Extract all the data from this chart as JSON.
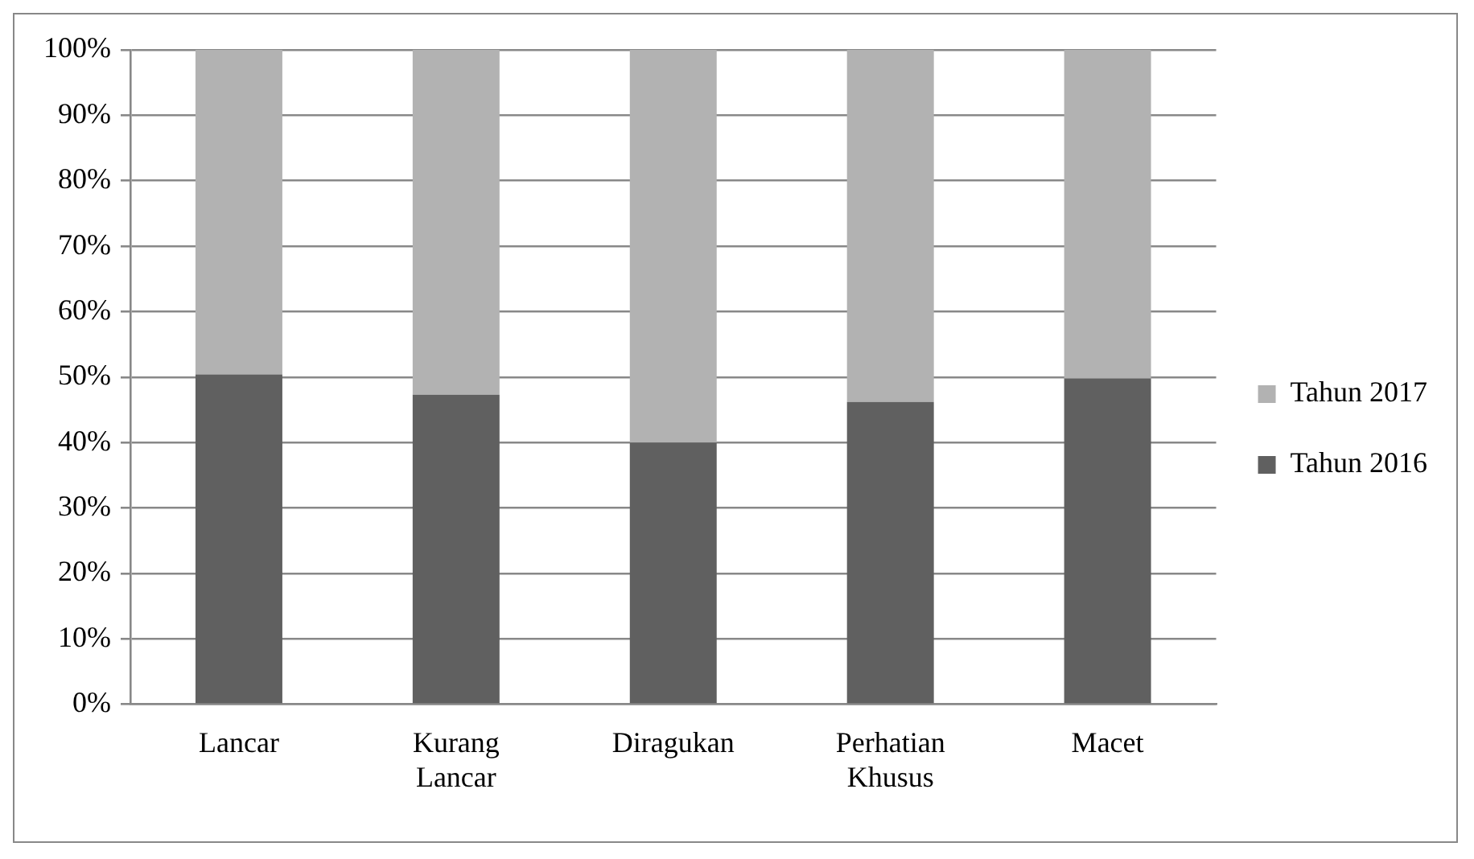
{
  "chart_data": {
    "type": "bar",
    "stacked": true,
    "categories": [
      "Lancar",
      "Kurang Lancar",
      "Diragukan",
      "Perhatian Khusus",
      "Macet"
    ],
    "series": [
      {
        "name": "Tahun 2016",
        "color": "#606060",
        "values": [
          50.4,
          47.3,
          40,
          46.2,
          49.8
        ]
      },
      {
        "name": "Tahun 2017",
        "color": "#b2b2b2",
        "values": [
          49.6,
          52.7,
          60,
          53.8,
          50.2
        ]
      }
    ],
    "ylim": [
      0,
      100
    ],
    "yticks": [
      {
        "value": 0,
        "label": "0%"
      },
      {
        "value": 10,
        "label": "10%"
      },
      {
        "value": 20,
        "label": "20%"
      },
      {
        "value": 30,
        "label": "30%"
      },
      {
        "value": 40,
        "label": "40%"
      },
      {
        "value": 50,
        "label": "50%"
      },
      {
        "value": 60,
        "label": "60%"
      },
      {
        "value": 70,
        "label": "70%"
      },
      {
        "value": 80,
        "label": "80%"
      },
      {
        "value": 90,
        "label": "90%"
      },
      {
        "value": 100,
        "label": "100%"
      }
    ],
    "grid": "y",
    "legend": "right"
  }
}
